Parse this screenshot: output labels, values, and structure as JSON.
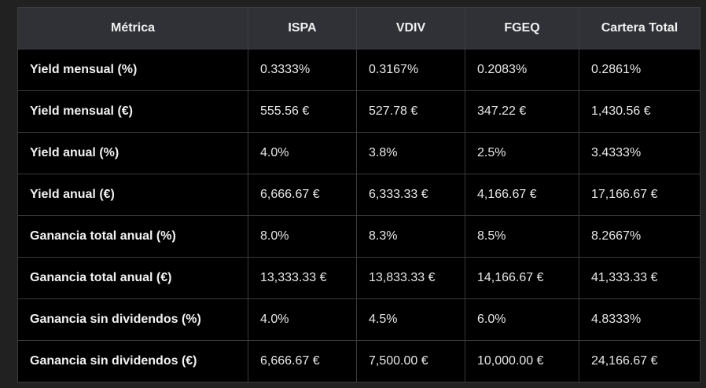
{
  "table": {
    "headers": [
      "Métrica",
      "ISPA",
      "VDIV",
      "FGEQ",
      "Cartera Total"
    ],
    "rows": [
      [
        "Yield mensual (%)",
        "0.3333%",
        "0.3167%",
        "0.2083%",
        "0.2861%"
      ],
      [
        "Yield mensual (€)",
        "555.56 €",
        "527.78 €",
        "347.22 €",
        "1,430.56 €"
      ],
      [
        "Yield anual (%)",
        "4.0%",
        "3.8%",
        "2.5%",
        "3.4333%"
      ],
      [
        "Yield anual (€)",
        "6,666.67 €",
        "6,333.33 €",
        "4,166.67 €",
        "17,166.67 €"
      ],
      [
        "Ganancia total anual (%)",
        "8.0%",
        "8.3%",
        "8.5%",
        "8.2667%"
      ],
      [
        "Ganancia total anual (€)",
        "13,333.33 €",
        "13,833.33 €",
        "14,166.67 €",
        "41,333.33 €"
      ],
      [
        "Ganancia sin dividendos (%)",
        "4.0%",
        "4.5%",
        "6.0%",
        "4.8333%"
      ],
      [
        "Ganancia sin dividendos (€)",
        "6,666.67 €",
        "7,500.00 €",
        "10,000.00 €",
        "24,166.67 €"
      ]
    ]
  },
  "colors": {
    "page_background": "#212121",
    "header_background": "#2f3136",
    "cell_background": "#000000",
    "border": "#3a3a3a",
    "text": "#ececec"
  }
}
